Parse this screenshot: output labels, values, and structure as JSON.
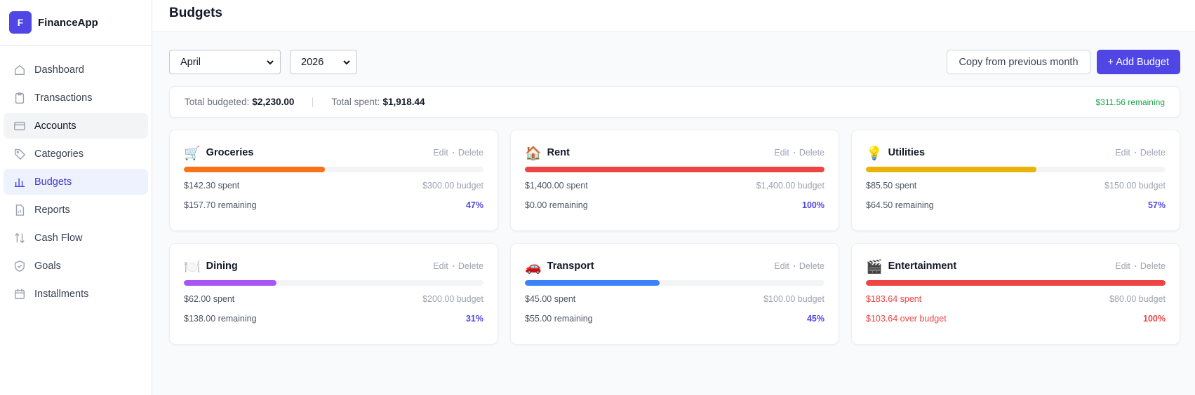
{
  "app": {
    "logo_letter": "F",
    "name": "FinanceApp"
  },
  "nav": [
    {
      "label": "Dashboard",
      "active": false,
      "hovered": false
    },
    {
      "label": "Transactions",
      "active": false,
      "hovered": false
    },
    {
      "label": "Accounts",
      "active": false,
      "hovered": true
    },
    {
      "label": "Categories",
      "active": false,
      "hovered": false
    },
    {
      "label": "Budgets",
      "active": true,
      "hovered": false
    },
    {
      "label": "Reports",
      "active": false,
      "hovered": false
    },
    {
      "label": "Cash Flow",
      "active": false,
      "hovered": false
    },
    {
      "label": "Goals",
      "active": false,
      "hovered": false
    },
    {
      "label": "Installments",
      "active": false,
      "hovered": false
    }
  ],
  "header": {
    "title": "Budgets"
  },
  "filters": {
    "month": "April",
    "year": "2026"
  },
  "actions": {
    "copy": "Copy from previous month",
    "add": "+ Add Budget"
  },
  "summary": {
    "budgeted_label": "Total budgeted:",
    "budgeted": "$2,230.00",
    "spent_label": "Total spent:",
    "spent": "$1,918.44",
    "remaining": "$311.56 remaining"
  },
  "card_actions": {
    "edit": "Edit",
    "delete": "Delete"
  },
  "budgets": [
    {
      "icon": "🛒",
      "name": "Groceries",
      "spent": "$142.30 spent",
      "budget": "$300.00 budget",
      "remaining": "$157.70 remaining",
      "percent": {
        "value": 47,
        "label": "47%"
      },
      "color": "#f97316",
      "over": false
    },
    {
      "icon": "🏠",
      "name": "Rent",
      "spent": "$1,400.00 spent",
      "budget": "$1,400.00 budget",
      "remaining": "$0.00 remaining",
      "percent": {
        "value": 100,
        "label": "100%"
      },
      "color": "#ef4444",
      "over": false
    },
    {
      "icon": "💡",
      "name": "Utilities",
      "spent": "$85.50 spent",
      "budget": "$150.00 budget",
      "remaining": "$64.50 remaining",
      "percent": {
        "value": 57,
        "label": "57%"
      },
      "color": "#eab308",
      "over": false
    },
    {
      "icon": "🍽️",
      "name": "Dining",
      "spent": "$62.00 spent",
      "budget": "$200.00 budget",
      "remaining": "$138.00 remaining",
      "percent": {
        "value": 31,
        "label": "31%"
      },
      "color": "#a855f7",
      "over": false
    },
    {
      "icon": "🚗",
      "name": "Transport",
      "spent": "$45.00 spent",
      "budget": "$100.00 budget",
      "remaining": "$55.00 remaining",
      "percent": {
        "value": 45,
        "label": "45%"
      },
      "color": "#3b82f6",
      "over": false
    },
    {
      "icon": "🎬",
      "name": "Entertainment",
      "spent": "$183.64 spent",
      "budget": "$80.00 budget",
      "remaining": "$103.64 over budget",
      "percent": {
        "value": 100,
        "label": "100%"
      },
      "color": "#ef4444",
      "over": true
    }
  ]
}
